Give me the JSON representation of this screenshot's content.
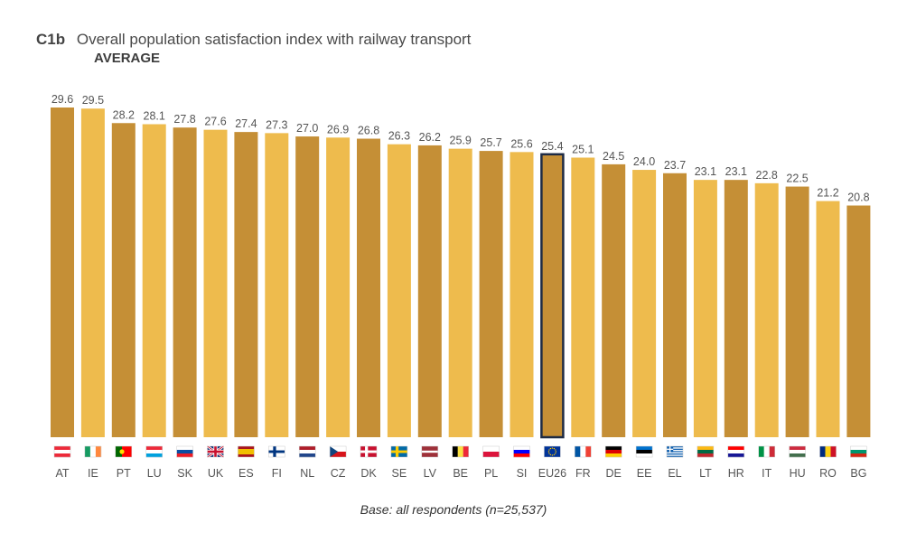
{
  "header": {
    "code": "C1b",
    "title": "Overall population satisfaction index with railway transport",
    "subtitle": "AVERAGE"
  },
  "footer": {
    "base": "Base: all respondents (n=25,537)"
  },
  "colors": {
    "dark": "#C58F36",
    "light": "#EEBB4D",
    "highlight_border": "#1d2a44"
  },
  "chart_data": {
    "type": "bar",
    "title": "Overall population satisfaction index with railway transport",
    "subtitle": "AVERAGE",
    "categories": [
      "AT",
      "IE",
      "PT",
      "LU",
      "SK",
      "UK",
      "ES",
      "FI",
      "NL",
      "CZ",
      "DK",
      "SE",
      "LV",
      "BE",
      "PL",
      "SI",
      "EU26",
      "FR",
      "DE",
      "EE",
      "EL",
      "LT",
      "HR",
      "IT",
      "HU",
      "RO",
      "BG"
    ],
    "values": [
      29.6,
      29.5,
      28.2,
      28.1,
      27.8,
      27.6,
      27.4,
      27.3,
      27.0,
      26.9,
      26.8,
      26.3,
      26.2,
      25.9,
      25.7,
      25.6,
      25.4,
      25.1,
      24.5,
      24.0,
      23.7,
      23.1,
      23.1,
      22.8,
      22.5,
      21.2,
      20.8
    ],
    "value_labels": [
      "29.6",
      "29.5",
      "28.2",
      "28.1",
      "27.8",
      "27.6",
      "27.4",
      "27.3",
      "27.0",
      "26.9",
      "26.8",
      "26.3",
      "26.2",
      "25.9",
      "25.7",
      "25.6",
      "25.4",
      "25.1",
      "24.5",
      "24.0",
      "23.7",
      "23.1",
      "23.1",
      "22.8",
      "22.5",
      "21.2",
      "20.8"
    ],
    "highlight": "EU26",
    "ylim": [
      0,
      29.6
    ],
    "xlabel": "",
    "ylabel": ""
  },
  "flags": {
    "AT": {
      "type": "h",
      "c": [
        "#ED2939",
        "#FFFFFF",
        "#ED2939"
      ]
    },
    "IE": {
      "type": "v",
      "c": [
        "#169B62",
        "#FFFFFF",
        "#FF883E"
      ]
    },
    "PT": {
      "type": "v2",
      "c": [
        "#006600",
        "#FF0000"
      ]
    },
    "LU": {
      "type": "h",
      "c": [
        "#ED2939",
        "#FFFFFF",
        "#00A1DE"
      ]
    },
    "SK": {
      "type": "h",
      "c": [
        "#FFFFFF",
        "#0B4EA2",
        "#EE1C25"
      ]
    },
    "UK": {
      "type": "uk",
      "c": [
        "#012169",
        "#FFFFFF",
        "#C8102E"
      ]
    },
    "ES": {
      "type": "es",
      "c": [
        "#AA151B",
        "#F1BF00",
        "#AA151B"
      ]
    },
    "FI": {
      "type": "nordic",
      "c": [
        "#FFFFFF",
        "#003580"
      ]
    },
    "NL": {
      "type": "h",
      "c": [
        "#AE1C28",
        "#FFFFFF",
        "#21468B"
      ]
    },
    "CZ": {
      "type": "cz",
      "c": [
        "#FFFFFF",
        "#D7141A",
        "#11457E"
      ]
    },
    "DK": {
      "type": "nordic",
      "c": [
        "#C8102E",
        "#FFFFFF"
      ]
    },
    "SE": {
      "type": "nordic",
      "c": [
        "#006AA7",
        "#FECC00"
      ]
    },
    "LV": {
      "type": "lv",
      "c": [
        "#9E3039",
        "#FFFFFF",
        "#9E3039"
      ]
    },
    "BE": {
      "type": "v",
      "c": [
        "#000000",
        "#FAE042",
        "#ED2939"
      ]
    },
    "PL": {
      "type": "h2",
      "c": [
        "#FFFFFF",
        "#DC143C"
      ]
    },
    "SI": {
      "type": "h",
      "c": [
        "#FFFFFF",
        "#0000FF",
        "#FF0000"
      ]
    },
    "EU26": {
      "type": "eu",
      "c": [
        "#003399",
        "#FFCC00"
      ]
    },
    "FR": {
      "type": "v",
      "c": [
        "#0055A4",
        "#FFFFFF",
        "#EF4135"
      ]
    },
    "DE": {
      "type": "h",
      "c": [
        "#000000",
        "#DD0000",
        "#FFCE00"
      ]
    },
    "EE": {
      "type": "h",
      "c": [
        "#0072CE",
        "#000000",
        "#FFFFFF"
      ]
    },
    "EL": {
      "type": "gr",
      "c": [
        "#0D5EAF",
        "#FFFFFF"
      ]
    },
    "LT": {
      "type": "h",
      "c": [
        "#FDB913",
        "#006A44",
        "#C1272D"
      ]
    },
    "HR": {
      "type": "h",
      "c": [
        "#FF0000",
        "#FFFFFF",
        "#171796"
      ]
    },
    "IT": {
      "type": "v",
      "c": [
        "#009246",
        "#FFFFFF",
        "#CE2B37"
      ]
    },
    "HU": {
      "type": "h",
      "c": [
        "#CD2A3E",
        "#FFFFFF",
        "#436F4D"
      ]
    },
    "RO": {
      "type": "v",
      "c": [
        "#002B7F",
        "#FCD116",
        "#CE1126"
      ]
    },
    "BG": {
      "type": "h",
      "c": [
        "#FFFFFF",
        "#00966E",
        "#D62612"
      ]
    }
  }
}
